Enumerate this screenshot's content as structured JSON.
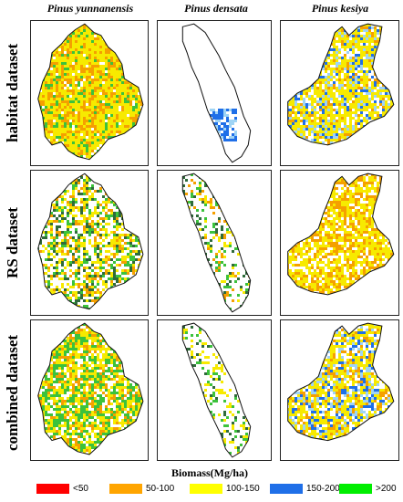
{
  "columns": [
    "Pinus yunnanensis",
    "Pinus densata",
    "Pinus kesiya"
  ],
  "rows": [
    "habitat dataset",
    "RS dataset",
    "combined dataset"
  ],
  "legend": {
    "title": "Biomass(Mg/ha)",
    "items": [
      {
        "label": "<50",
        "color": "#ff0000"
      },
      {
        "label": "50-100",
        "color": "#ffa500"
      },
      {
        "label": "100-150",
        "color": "#ffff00"
      },
      {
        "label": "150-200",
        "color": "#1f6fe8"
      },
      {
        "label": ">200",
        "color": "#00ee00"
      }
    ]
  }
}
